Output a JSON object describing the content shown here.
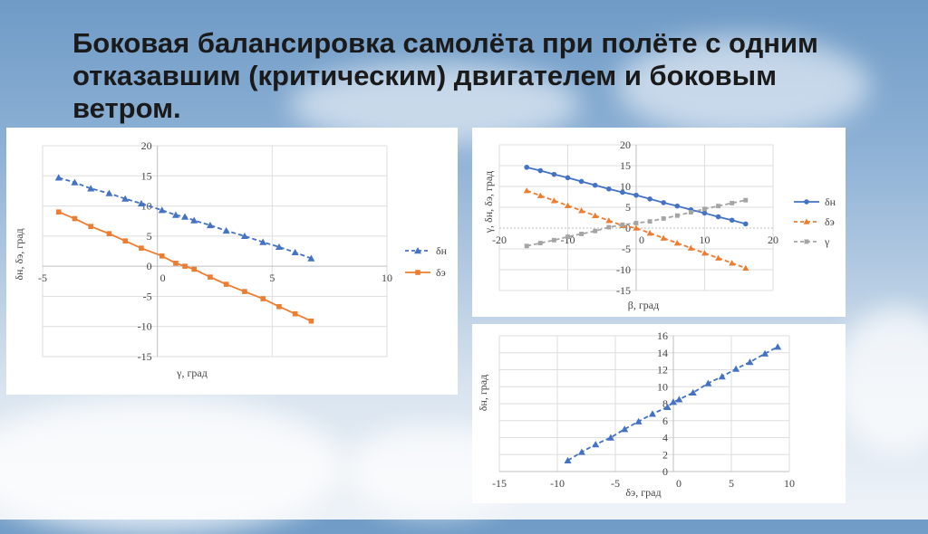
{
  "slide": {
    "title": "Боковая балансировка самолёта при полёте с одним отказавшим (критическим) двигателем и боковым ветром."
  },
  "colors": {
    "blue": "#4472c4",
    "orange": "#ed7d31",
    "gray": "#a5a5a5"
  },
  "chart_data": [
    {
      "type": "line",
      "xlabel": "γ, град",
      "ylabel": "δн, δэ, град",
      "xlim": [
        -5,
        10
      ],
      "ylim": [
        -15,
        20
      ],
      "xticks": [
        -5,
        0,
        5,
        10
      ],
      "yticks": [
        -15,
        -10,
        -5,
        0,
        5,
        10,
        15,
        20
      ],
      "legend_position": "right",
      "series": [
        {
          "name": "δн",
          "color": "#4472c4",
          "marker": "triangle",
          "dashed": true,
          "x": [
            -4.3,
            -3.6,
            -2.9,
            -2.1,
            -1.4,
            -0.7,
            0.2,
            0.8,
            1.2,
            1.6,
            2.3,
            3.0,
            3.8,
            4.6,
            5.3,
            6.0,
            6.7
          ],
          "y": [
            14.7,
            13.9,
            12.9,
            12.1,
            11.2,
            10.4,
            9.3,
            8.5,
            8.2,
            7.6,
            6.8,
            5.9,
            5.0,
            4.0,
            3.2,
            2.3,
            1.3
          ]
        },
        {
          "name": "δэ",
          "color": "#ed7d31",
          "marker": "square",
          "dashed": false,
          "x": [
            -4.3,
            -3.6,
            -2.9,
            -2.1,
            -1.4,
            -0.7,
            0.2,
            0.8,
            1.2,
            1.6,
            2.3,
            3.0,
            3.8,
            4.6,
            5.3,
            6.0,
            6.7
          ],
          "y": [
            9.0,
            7.9,
            6.6,
            5.4,
            4.2,
            3.0,
            1.7,
            0.5,
            0.0,
            -0.5,
            -1.8,
            -3.0,
            -4.2,
            -5.4,
            -6.7,
            -7.9,
            -9.1
          ]
        }
      ]
    },
    {
      "type": "line",
      "xlabel": "β, град",
      "ylabel": "γ, δн, δэ, град",
      "xlim": [
        -20,
        20
      ],
      "ylim": [
        -15,
        20
      ],
      "xticks": [
        -20,
        -10,
        0,
        10,
        20
      ],
      "yticks": [
        -15,
        -10,
        -5,
        0,
        5,
        10,
        15,
        20
      ],
      "legend_position": "right",
      "series": [
        {
          "name": "δн",
          "color": "#4472c4",
          "marker": "circle",
          "dashed": false,
          "x": [
            -16,
            -14,
            -12,
            -10,
            -8,
            -6,
            -4,
            -2,
            0,
            2,
            4,
            6,
            8,
            10,
            12,
            14,
            16
          ],
          "y": [
            14.6,
            13.8,
            12.9,
            12.1,
            11.2,
            10.3,
            9.4,
            8.6,
            7.9,
            7.0,
            6.1,
            5.3,
            4.4,
            3.6,
            2.7,
            1.9,
            1.0
          ]
        },
        {
          "name": "δэ",
          "color": "#ed7d31",
          "marker": "triangle",
          "dashed": true,
          "x": [
            -16,
            -14,
            -12,
            -10,
            -8,
            -6,
            -4,
            -2,
            0,
            2,
            4,
            6,
            8,
            10,
            12,
            14,
            16
          ],
          "y": [
            9.0,
            7.8,
            6.6,
            5.4,
            4.2,
            3.0,
            1.8,
            0.6,
            0.0,
            -1.2,
            -2.4,
            -3.6,
            -4.8,
            -6.0,
            -7.2,
            -8.4,
            -9.6
          ]
        },
        {
          "name": "γ",
          "color": "#a5a5a5",
          "marker": "square",
          "dashed": true,
          "x": [
            -16,
            -14,
            -12,
            -10,
            -8,
            -6,
            -4,
            -2,
            0,
            2,
            4,
            6,
            8,
            10,
            12,
            14,
            16
          ],
          "y": [
            -4.3,
            -3.6,
            -2.9,
            -2.1,
            -1.4,
            -0.7,
            0.2,
            0.8,
            1.2,
            1.6,
            2.3,
            3.0,
            3.8,
            4.6,
            5.3,
            6.0,
            6.7
          ]
        }
      ]
    },
    {
      "type": "scatter",
      "xlabel": "δэ, град",
      "ylabel": "δн, град",
      "xlim": [
        -15,
        10
      ],
      "ylim": [
        0,
        16
      ],
      "xticks": [
        -15,
        -10,
        -5,
        0,
        5,
        10
      ],
      "yticks": [
        0,
        2,
        4,
        6,
        8,
        10,
        12,
        14,
        16
      ],
      "series": [
        {
          "name": "",
          "color": "#4472c4",
          "marker": "triangle",
          "dashed": true,
          "x": [
            -9.1,
            -7.9,
            -6.7,
            -5.4,
            -4.2,
            -3.0,
            -1.8,
            -0.5,
            0.0,
            0.5,
            1.7,
            3.0,
            4.2,
            5.4,
            6.6,
            7.9,
            9.0
          ],
          "y": [
            1.3,
            2.3,
            3.2,
            4.0,
            5.0,
            5.9,
            6.8,
            7.6,
            8.2,
            8.5,
            9.3,
            10.4,
            11.2,
            12.1,
            12.9,
            13.9,
            14.7
          ]
        }
      ]
    }
  ]
}
